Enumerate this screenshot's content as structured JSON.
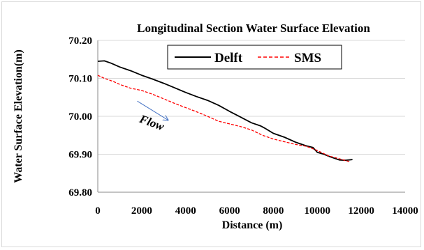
{
  "chart_data": {
    "type": "line",
    "title": "Longitudinal Section Water Surface Elevation",
    "xlabel": "Distance (m)",
    "ylabel": "Water Surface Elevation(m)",
    "xlim": [
      0,
      14000
    ],
    "ylim": [
      69.8,
      70.2
    ],
    "x_ticks": [
      0,
      2000,
      4000,
      6000,
      8000,
      10000,
      12000,
      14000
    ],
    "y_ticks": [
      69.8,
      69.9,
      70.0,
      70.1,
      70.2
    ],
    "x_tick_labels": [
      "0",
      "2000",
      "4000",
      "6000",
      "8000",
      "10000",
      "12000",
      "14000"
    ],
    "y_tick_labels": [
      "69.80",
      "69.90",
      "70.00",
      "70.10",
      "70.20"
    ],
    "grid": "horizontal",
    "legend_position": "top",
    "series": [
      {
        "name": "Delft",
        "color": "#000000",
        "style": "solid",
        "x": [
          0,
          300,
          600,
          1000,
          1500,
          2000,
          2500,
          3000,
          3500,
          4000,
          4500,
          5000,
          5500,
          6000,
          6500,
          7000,
          7400,
          7600,
          8000,
          8500,
          9000,
          9500,
          9800,
          10000,
          10300,
          10600,
          11000,
          11300,
          11600
        ],
        "y": [
          70.145,
          70.146,
          70.14,
          70.13,
          70.12,
          70.108,
          70.098,
          70.087,
          70.075,
          70.063,
          70.052,
          70.042,
          70.029,
          70.013,
          69.998,
          69.983,
          69.975,
          69.969,
          69.955,
          69.945,
          69.932,
          69.922,
          69.918,
          69.905,
          69.9,
          69.893,
          69.885,
          69.884,
          69.886
        ]
      },
      {
        "name": "SMS",
        "color": "#ff0000",
        "style": "dashed",
        "x": [
          0,
          300,
          700,
          1000,
          1500,
          2000,
          2500,
          3000,
          3500,
          4000,
          4500,
          5000,
          5500,
          6000,
          6500,
          7000,
          7500,
          8000,
          8500,
          9000,
          9500,
          10000,
          10500,
          11000,
          11500
        ],
        "y": [
          70.108,
          70.1,
          70.092,
          70.084,
          70.074,
          70.068,
          70.058,
          70.046,
          70.034,
          70.023,
          70.012,
          70.0,
          69.987,
          69.98,
          69.973,
          69.964,
          69.95,
          69.94,
          69.933,
          69.926,
          69.921,
          69.91,
          69.896,
          69.888,
          69.88
        ]
      }
    ],
    "annotations": [
      {
        "text": "Flow",
        "arrow": true,
        "x_start": 1800,
        "y_start": 70.04,
        "x_end": 3200,
        "y_end": 69.99
      }
    ]
  }
}
